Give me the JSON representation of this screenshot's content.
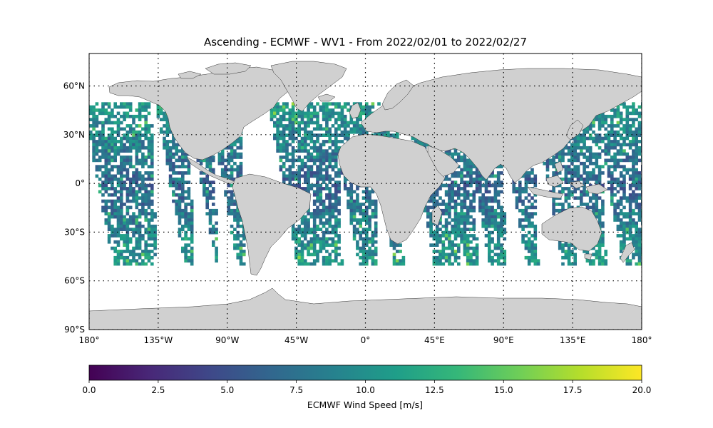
{
  "title": "Ascending - ECMWF - WV1 - From 2022/02/01 to 2022/02/27",
  "map": {
    "projection": "PlateCarree",
    "lon_range": [
      -180,
      180
    ],
    "lat_range": [
      -90,
      80
    ],
    "gridlines": "dotted",
    "land_color": "#d0d0d0",
    "ocean_color": "#ffffff",
    "swath_lat_range": [
      -50,
      50
    ],
    "lon_ticks": [
      "180°",
      "135°W",
      "90°W",
      "45°W",
      "0°",
      "45°E",
      "90°E",
      "135°E",
      "180°"
    ],
    "lon_tick_values": [
      -180,
      -135,
      -90,
      -45,
      0,
      45,
      90,
      135,
      180
    ],
    "lat_ticks": [
      "60°N",
      "30°N",
      "0°",
      "30°S",
      "60°S",
      "90°S"
    ],
    "lat_tick_values": [
      60,
      30,
      0,
      -30,
      -60,
      -90
    ]
  },
  "colorbar": {
    "label": "ECMWF Wind Speed [m/s]",
    "colormap": "viridis",
    "range": [
      0,
      20
    ],
    "ticks": [
      "0.0",
      "2.5",
      "5.0",
      "7.5",
      "10.0",
      "12.5",
      "15.0",
      "17.5",
      "20.0"
    ],
    "tick_values": [
      0,
      2.5,
      5,
      7.5,
      10,
      12.5,
      15,
      17.5,
      20
    ],
    "colors": [
      "#440154",
      "#482878",
      "#3e4989",
      "#31688e",
      "#26828e",
      "#1f9e89",
      "#35b779",
      "#6ece58",
      "#b5de2b",
      "#fde725"
    ]
  }
}
